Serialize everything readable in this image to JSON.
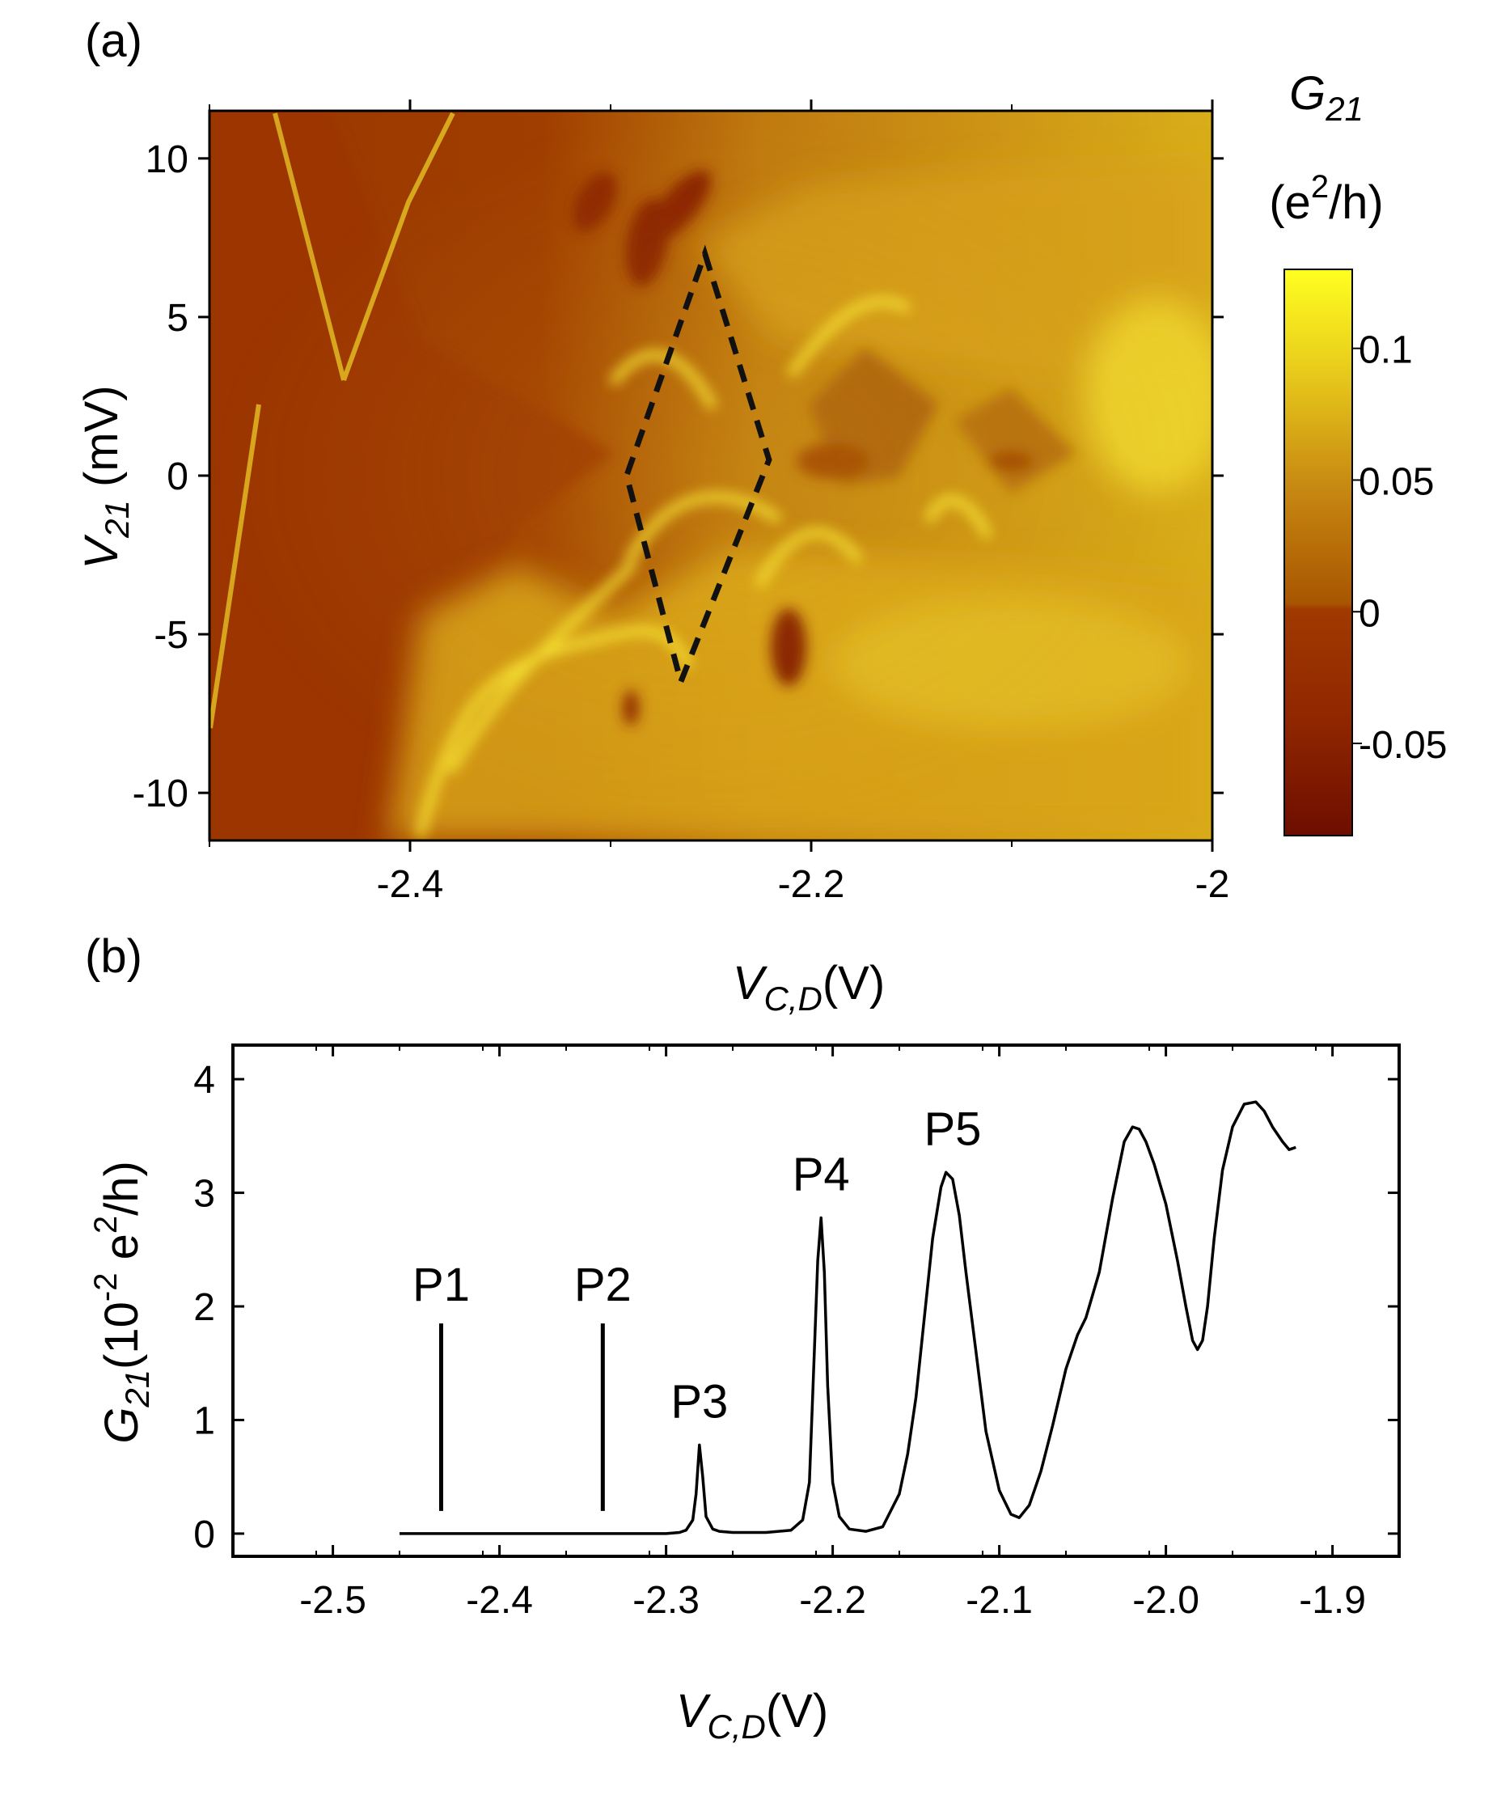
{
  "panel_a": {
    "label": "(a)",
    "colorbar_title": "G",
    "colorbar_title_sub": "21",
    "colorbar_unit": "(e",
    "colorbar_unit_sup": "2",
    "colorbar_unit_tail": "/h)",
    "xlabel_main": "V",
    "xlabel_sub": "C,D",
    "xlabel_unit": "(V)",
    "ylabel_main": "V",
    "ylabel_sub": "21",
    "ylabel_unit": " (mV)"
  },
  "panel_b": {
    "label": "(b)",
    "xlabel_main": "V",
    "xlabel_sub": "C,D",
    "xlabel_unit": "(V)",
    "ylabel_main": "G",
    "ylabel_sub": "21",
    "ylabel_unit_a": "(10",
    "ylabel_unit_sup": "-2",
    "ylabel_unit_b": " e",
    "ylabel_unit_sup2": "2",
    "ylabel_unit_c": "/h)"
  },
  "colors": {
    "map_low": "#7a1800",
    "map_zero": "#9c3a00",
    "map_mid": "#c88a10",
    "map_high": "#f3e21e",
    "colorbar_top": "#ffff20",
    "colorbar_bottom": "#6e0e00",
    "line": "#000000",
    "diamond": "#111111"
  },
  "chart_data": [
    {
      "type": "heatmap",
      "title": "",
      "x_range": [
        -2.5,
        -2.0
      ],
      "y_range": [
        -11.5,
        11.5
      ],
      "x_ticks": [
        "-2.4",
        "-2.2",
        "-2"
      ],
      "x_tick_values": [
        -2.4,
        -2.2,
        -2.0
      ],
      "y_ticks": [
        "10",
        "5",
        "0",
        "-5",
        "-10"
      ],
      "y_tick_values": [
        10,
        5,
        0,
        -5,
        -10
      ],
      "colorbar": {
        "range": [
          -0.085,
          0.13
        ],
        "ticks": [
          "0.1",
          "0.05",
          "0",
          "-0.05"
        ],
        "tick_values": [
          0.1,
          0.05,
          0,
          -0.05
        ]
      },
      "diamond": [
        {
          "x": -2.253,
          "y": 7.0
        },
        {
          "x": -2.221,
          "y": 0.5
        },
        {
          "x": -2.265,
          "y": -6.5
        },
        {
          "x": -2.292,
          "y": 0.0
        }
      ]
    },
    {
      "type": "line",
      "title": "",
      "xlim": [
        -2.56,
        -1.86
      ],
      "ylim": [
        -0.2,
        4.3
      ],
      "x_ticks": [
        "-2.5",
        "-2.4",
        "-2.3",
        "-2.2",
        "-2.1",
        "-2.0",
        "-1.9"
      ],
      "x_tick_values": [
        -2.5,
        -2.4,
        -2.3,
        -2.2,
        -2.1,
        -2.0,
        -1.9
      ],
      "y_ticks": [
        "0",
        "1",
        "2",
        "3",
        "4"
      ],
      "y_tick_values": [
        0,
        1,
        2,
        3,
        4
      ],
      "peaks": [
        {
          "label": "P1",
          "x": -2.435,
          "marker": [
            0.2,
            1.85
          ]
        },
        {
          "label": "P2",
          "x": -2.338,
          "marker": [
            0.2,
            1.85
          ]
        },
        {
          "label": "P3",
          "x": -2.28,
          "value": 0.78
        },
        {
          "label": "P4",
          "x": -2.207,
          "value": 2.78
        },
        {
          "label": "P5",
          "x": -2.128,
          "value": 3.18
        }
      ],
      "series": [
        {
          "x": [
            -2.46,
            -2.4,
            -2.33,
            -2.3,
            -2.292,
            -2.288,
            -2.284,
            -2.282,
            -2.28,
            -2.278,
            -2.276,
            -2.272,
            -2.268,
            -2.26,
            -2.24,
            -2.225,
            -2.218,
            -2.214,
            -2.211,
            -2.209,
            -2.207,
            -2.205,
            -2.203,
            -2.2,
            -2.196,
            -2.19,
            -2.18,
            -2.17,
            -2.16,
            -2.155,
            -2.15,
            -2.145,
            -2.14,
            -2.135,
            -2.132,
            -2.128,
            -2.124,
            -2.12,
            -2.114,
            -2.108,
            -2.1,
            -2.093,
            -2.088,
            -2.082,
            -2.075,
            -2.068,
            -2.06,
            -2.053,
            -2.048,
            -2.04,
            -2.032,
            -2.025,
            -2.02,
            -2.016,
            -2.012,
            -2.007,
            -2.0,
            -1.993,
            -1.988,
            -1.984,
            -1.981,
            -1.978,
            -1.975,
            -1.971,
            -1.966,
            -1.96,
            -1.953,
            -1.946,
            -1.941,
            -1.936,
            -1.93,
            -1.926,
            -1.922
          ],
          "values": [
            0.0,
            0.0,
            0.0,
            0.0,
            0.01,
            0.03,
            0.12,
            0.35,
            0.78,
            0.5,
            0.15,
            0.04,
            0.02,
            0.01,
            0.01,
            0.03,
            0.12,
            0.45,
            1.6,
            2.4,
            2.78,
            2.3,
            1.3,
            0.45,
            0.15,
            0.04,
            0.02,
            0.06,
            0.35,
            0.7,
            1.2,
            1.9,
            2.6,
            3.05,
            3.18,
            3.12,
            2.8,
            2.3,
            1.6,
            0.9,
            0.38,
            0.17,
            0.14,
            0.25,
            0.55,
            0.95,
            1.45,
            1.75,
            1.9,
            2.3,
            2.95,
            3.45,
            3.58,
            3.56,
            3.45,
            3.25,
            2.9,
            2.4,
            2.0,
            1.7,
            1.62,
            1.7,
            2.0,
            2.6,
            3.2,
            3.58,
            3.78,
            3.8,
            3.72,
            3.58,
            3.45,
            3.38,
            3.4
          ]
        }
      ]
    }
  ]
}
